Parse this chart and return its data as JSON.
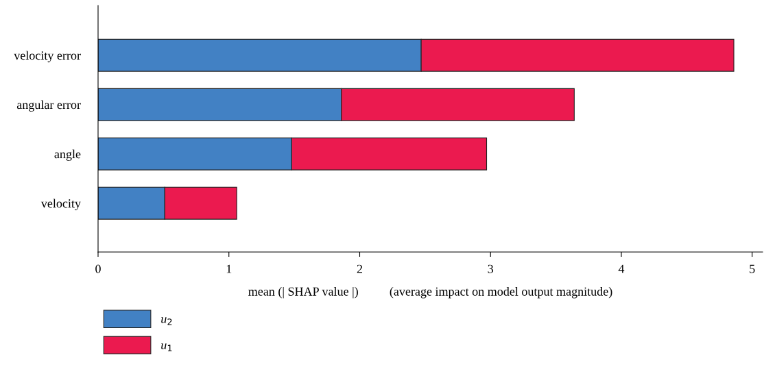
{
  "chart_data": {
    "type": "bar",
    "orientation": "horizontal",
    "stacked": true,
    "categories": [
      "velocity error",
      "angular error",
      "angle",
      "velocity"
    ],
    "series": [
      {
        "name": "u$_{2}$",
        "color": "#4281c4",
        "values": [
          2.47,
          1.86,
          1.48,
          0.51
        ]
      },
      {
        "name": "u$_{1}$",
        "color": "#eb1a4f",
        "values": [
          2.39,
          1.78,
          1.49,
          0.55
        ]
      }
    ],
    "xlabel": "mean (| SHAP value |)          (average impact on model output magnitude)",
    "xlim": [
      0,
      5.08
    ],
    "xticks": [
      0,
      1,
      2,
      3,
      4,
      5
    ],
    "grid": false,
    "legend": "bottom left"
  }
}
